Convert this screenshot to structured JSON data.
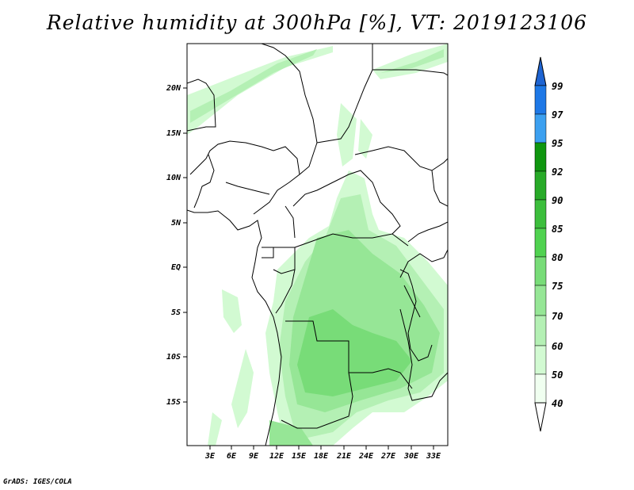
{
  "title": "Relative humidity at 300hPa [%], VT: 2019123106",
  "credit": "GrADS: IGES/COLA",
  "map": {
    "lon_range": [
      0,
      34.5
    ],
    "lat_range": [
      -20,
      24.5
    ],
    "lon_ticks": [
      "3E",
      "6E",
      "9E",
      "12E",
      "15E",
      "18E",
      "21E",
      "24E",
      "27E",
      "30E",
      "33E"
    ],
    "lat_ticks": [
      "20N",
      "15N",
      "10N",
      "5N",
      "EQ",
      "5S",
      "10S",
      "15S"
    ]
  },
  "colorbar": {
    "levels": [
      "99",
      "97",
      "95",
      "92",
      "90",
      "85",
      "80",
      "75",
      "70",
      "60",
      "50",
      "40"
    ],
    "colors": [
      "#1e64d2",
      "#1e78e6",
      "#3ca0f0",
      "#0f960f",
      "#28aa28",
      "#3cbe3c",
      "#50d250",
      "#78dc78",
      "#96e696",
      "#b4f0b4",
      "#d2fad2",
      "#f0fff0"
    ]
  }
}
